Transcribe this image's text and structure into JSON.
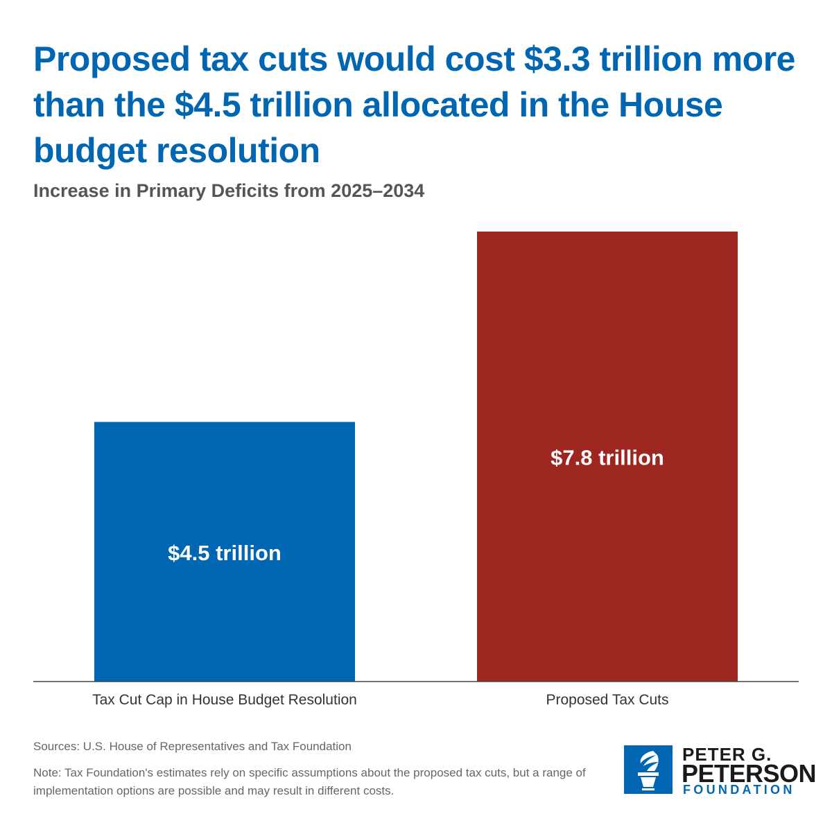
{
  "header": {
    "title": "Proposed tax cuts would cost $3.3 trillion more than the $4.5 trillion allocated in the House budget resolution",
    "subtitle": "Increase in Primary Deficits from 2025–2034"
  },
  "chart_data": {
    "type": "bar",
    "title": "Proposed tax cuts would cost $3.3 trillion more than the $4.5 trillion allocated in the House budget resolution",
    "subtitle": "Increase in Primary Deficits from 2025–2034",
    "categories": [
      "Tax Cut Cap in House Budget Resolution",
      "Proposed Tax Cuts"
    ],
    "values": [
      4.5,
      7.8
    ],
    "unit": "trillion USD",
    "data_labels": [
      "$4.5 trillion",
      "$7.8 trillion"
    ],
    "colors": [
      "#0066b1",
      "#9e2620"
    ],
    "xlabel": "",
    "ylabel": "",
    "ylim": [
      0,
      7.8
    ],
    "grid": false,
    "legend": "none"
  },
  "footer": {
    "sources": "Sources: U.S. House of Representatives and Tax Foundation",
    "note": "Note: Tax Foundation's estimates rely on specific assumptions about the proposed tax cuts, but a range of implementation options are possible and may result in different costs."
  },
  "logo": {
    "line1": "PETER G.",
    "line2": "PETERSON",
    "line3": "FOUNDATION",
    "icon": "torch-icon",
    "color": "#0066b1"
  }
}
